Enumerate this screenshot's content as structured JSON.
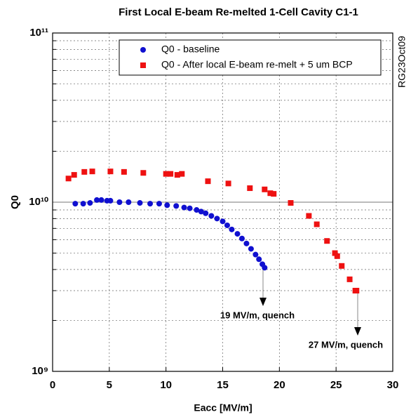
{
  "chart_data": {
    "type": "scatter",
    "title": "First  Local  E-beam  Re-melted  1-Cell  Cavity  C1-1",
    "side_note": "RG23Oct09",
    "x_label": "Eacc  [MV/m]",
    "y_label": "Q0",
    "log_y": true,
    "grid": true,
    "legend": "top",
    "xlim": [
      0,
      30
    ],
    "xticks": [
      0,
      5,
      10,
      15,
      20,
      25,
      30
    ],
    "ylim": [
      1000000000.0,
      100000000000.0
    ],
    "yticks": [
      {
        "value": 1000000000.0,
        "label": "10⁹"
      },
      {
        "value": 10000000000.0,
        "label": "10¹⁰"
      },
      {
        "value": 100000000000.0,
        "label": "10¹¹"
      }
    ],
    "yminorticks": [
      2000000000.0,
      3000000000.0,
      4000000000.0,
      5000000000.0,
      6000000000.0,
      7000000000.0,
      8000000000.0,
      9000000000.0,
      20000000000.0,
      30000000000.0,
      40000000000.0,
      50000000000.0,
      60000000000.0,
      70000000000.0,
      80000000000.0,
      90000000000.0
    ],
    "series": [
      {
        "name": "Q0 - baseline",
        "color": "#1010d0",
        "marker": "circle",
        "x": [
          2.0,
          2.7,
          3.3,
          3.9,
          4.3,
          4.8,
          5.1,
          5.9,
          6.7,
          7.7,
          8.6,
          9.4,
          10.1,
          10.9,
          11.6,
          12.1,
          12.7,
          13.1,
          13.5,
          14.0,
          14.5,
          15.0,
          15.4,
          15.8,
          16.3,
          16.7,
          17.1,
          17.5,
          17.9,
          18.2,
          18.5,
          18.7
        ],
        "values": [
          9800000000.0,
          9800000000.0,
          9900000000.0,
          10300000000.0,
          10300000000.0,
          10200000000.0,
          10200000000.0,
          10000000000.0,
          10000000000.0,
          9900000000.0,
          9800000000.0,
          9800000000.0,
          9600000000.0,
          9500000000.0,
          9300000000.0,
          9200000000.0,
          9000000000.0,
          8800000000.0,
          8600000000.0,
          8300000000.0,
          8000000000.0,
          7700000000.0,
          7300000000.0,
          6900000000.0,
          6500000000.0,
          6100000000.0,
          5700000000.0,
          5300000000.0,
          4900000000.0,
          4600000000.0,
          4300000000.0,
          4100000000.0
        ]
      },
      {
        "name": "Q0 - After local E-beam re-melt + 5 um BCP",
        "color": "#ee1111",
        "marker": "square",
        "x": [
          1.4,
          1.9,
          2.8,
          3.5,
          5.1,
          6.3,
          8.0,
          10.0,
          10.4,
          11.0,
          11.4,
          13.7,
          15.5,
          17.4,
          18.7,
          19.2,
          19.5,
          21.0,
          22.6,
          23.3,
          24.2,
          24.9,
          25.1,
          25.5,
          26.2,
          26.7,
          26.8
        ],
        "values": [
          13800000000.0,
          14500000000.0,
          15100000000.0,
          15200000000.0,
          15200000000.0,
          15100000000.0,
          14900000000.0,
          14700000000.0,
          14700000000.0,
          14500000000.0,
          14700000000.0,
          13300000000.0,
          12900000000.0,
          12100000000.0,
          11900000000.0,
          11300000000.0,
          11200000000.0,
          9900000000.0,
          8300000000.0,
          7400000000.0,
          5900000000.0,
          5000000000.0,
          4800000000.0,
          4200000000.0,
          3500000000.0,
          3000000000.0,
          3000000000.0
        ]
      }
    ],
    "annotations": [
      "19  MV/m,  quench",
      "27  MV/m,  quench"
    ]
  }
}
